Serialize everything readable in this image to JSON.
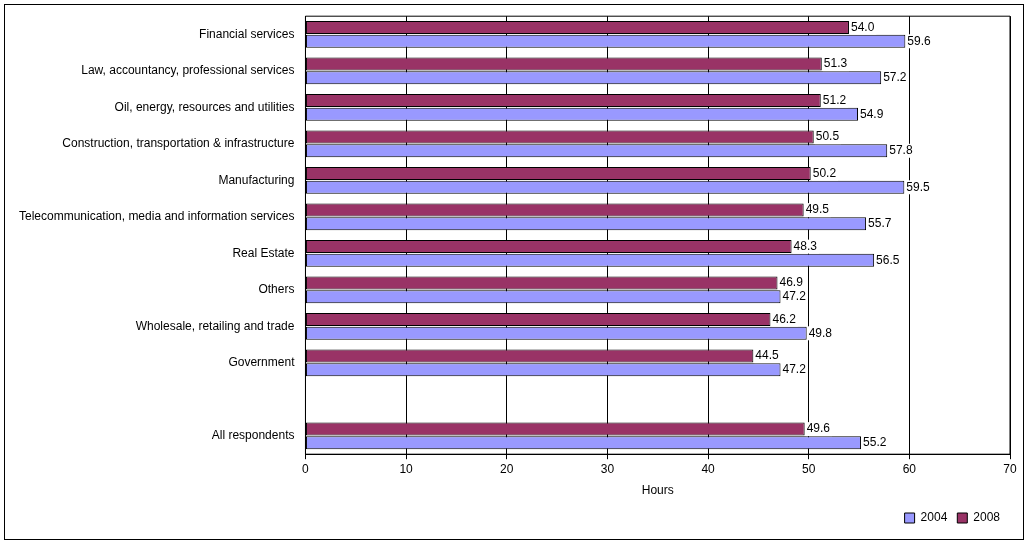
{
  "chart_data": {
    "type": "bar",
    "orientation": "horizontal",
    "xlabel": "Hours",
    "categories": [
      "Financial services",
      "Law, accountancy, professional services",
      "Oil, energy, resources and utilities",
      "Construction, transportation & infrastructure",
      "Manufacturing",
      "Telecommunication, media and information services",
      "Real Estate",
      "Others",
      "Wholesale, retailing and trade",
      "Government",
      null,
      "All respondents"
    ],
    "series": [
      {
        "name": "2004",
        "color": "#9999ff",
        "values": [
          59.6,
          57.2,
          54.9,
          57.8,
          59.5,
          55.7,
          56.5,
          47.2,
          49.8,
          47.2,
          null,
          55.2
        ],
        "value_labels": [
          "59.6",
          "57.2",
          "54.9",
          "57.8",
          "59.5",
          "55.7",
          "56.5",
          "47.2",
          "49.8",
          "47.2",
          null,
          "55.2"
        ]
      },
      {
        "name": "2008",
        "color": "#993366",
        "values": [
          54.0,
          51.3,
          51.2,
          50.5,
          50.2,
          49.5,
          48.3,
          46.9,
          46.2,
          44.5,
          null,
          49.6
        ],
        "value_labels": [
          "54.0",
          "51.3",
          "51.2",
          "50.5",
          "50.2",
          "49.5",
          "48.3",
          "46.9",
          "46.2",
          "44.5",
          null,
          "49.6"
        ]
      }
    ],
    "xlim": [
      0,
      70
    ],
    "xticks": [
      0,
      10,
      20,
      30,
      40,
      50,
      60,
      70
    ],
    "grid": "x",
    "legend": "bottom right"
  }
}
